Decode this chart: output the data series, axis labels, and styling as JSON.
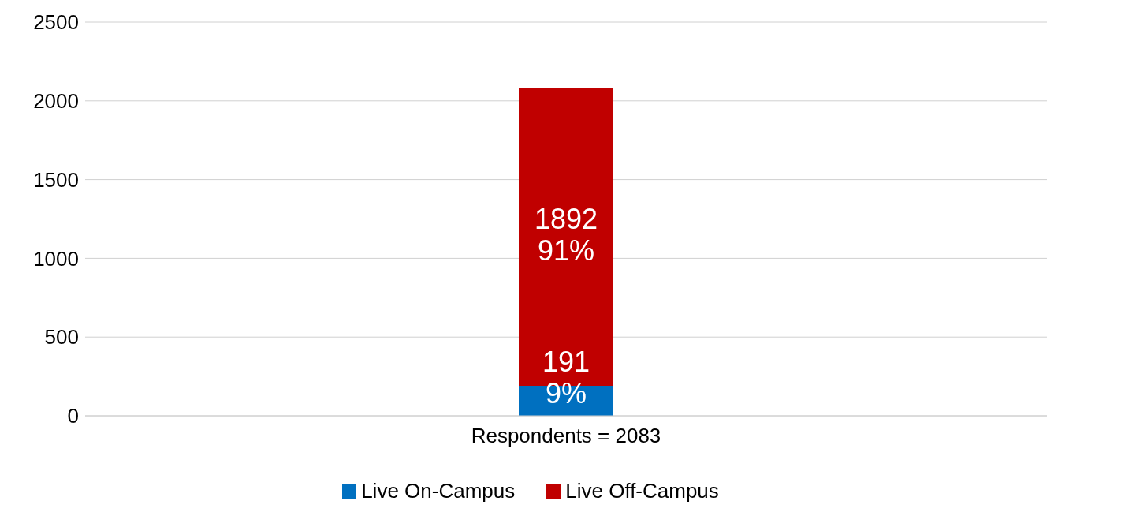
{
  "chart_data": {
    "type": "bar",
    "stacked": true,
    "categories": [
      "Respondents = 2083"
    ],
    "series": [
      {
        "name": "Live On-Campus",
        "color": "#0070c0",
        "values": [
          191
        ],
        "value_labels": [
          "191\n9%"
        ]
      },
      {
        "name": "Live Off-Campus",
        "color": "#c00000",
        "values": [
          1892
        ],
        "value_labels": [
          "1892\n91%"
        ]
      }
    ],
    "ylim": [
      0,
      2500
    ],
    "yticks": [
      0,
      500,
      1000,
      1500,
      2000,
      2500
    ],
    "grid": "y",
    "legend": "bottom"
  }
}
